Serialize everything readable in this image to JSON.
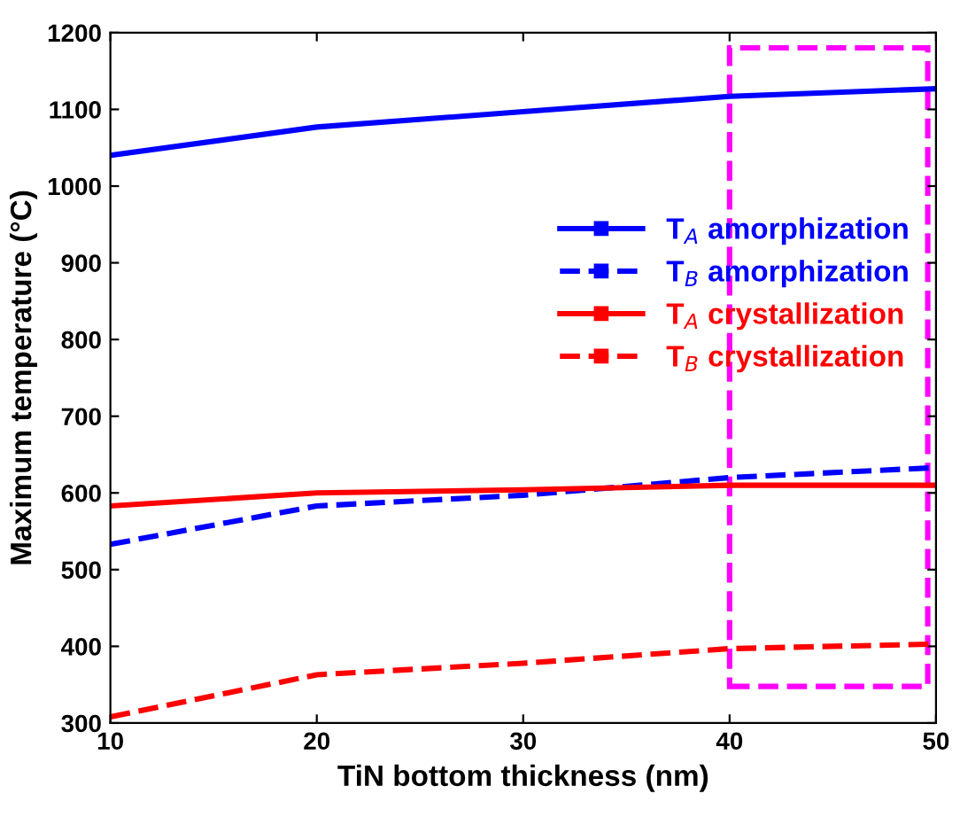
{
  "chart_data": {
    "type": "line",
    "xlabel": "TiN bottom thickness (nm)",
    "ylabel": "Maximum temperature (°C)",
    "x": [
      10,
      20,
      30,
      40,
      50
    ],
    "series": [
      {
        "name": "T$_{A}$ amorphization",
        "color": "#0000ff",
        "line_style": "solid",
        "values": [
          1040,
          1077,
          1097,
          1117,
          1127
        ]
      },
      {
        "name": "T$_{B}$ amorphization",
        "color": "#0000ff",
        "line_style": "dashed",
        "values": [
          533,
          583,
          597,
          620,
          633
        ]
      },
      {
        "name": "T$_{A}$ crystallization",
        "color": "#ff0000",
        "line_style": "solid",
        "values": [
          583,
          600,
          604,
          610,
          610
        ]
      },
      {
        "name": "T$_{B}$ crystallization",
        "color": "#ff0000",
        "line_style": "dashed",
        "values": [
          308,
          363,
          378,
          397,
          403
        ]
      }
    ],
    "xlim": [
      10,
      50
    ],
    "xticks": [
      10,
      20,
      30,
      40,
      50
    ],
    "ylim": [
      300,
      1200
    ],
    "yticks": [
      300,
      400,
      500,
      600,
      700,
      800,
      900,
      1000,
      1100,
      1200
    ],
    "legend": "center right",
    "grid": false
  }
}
